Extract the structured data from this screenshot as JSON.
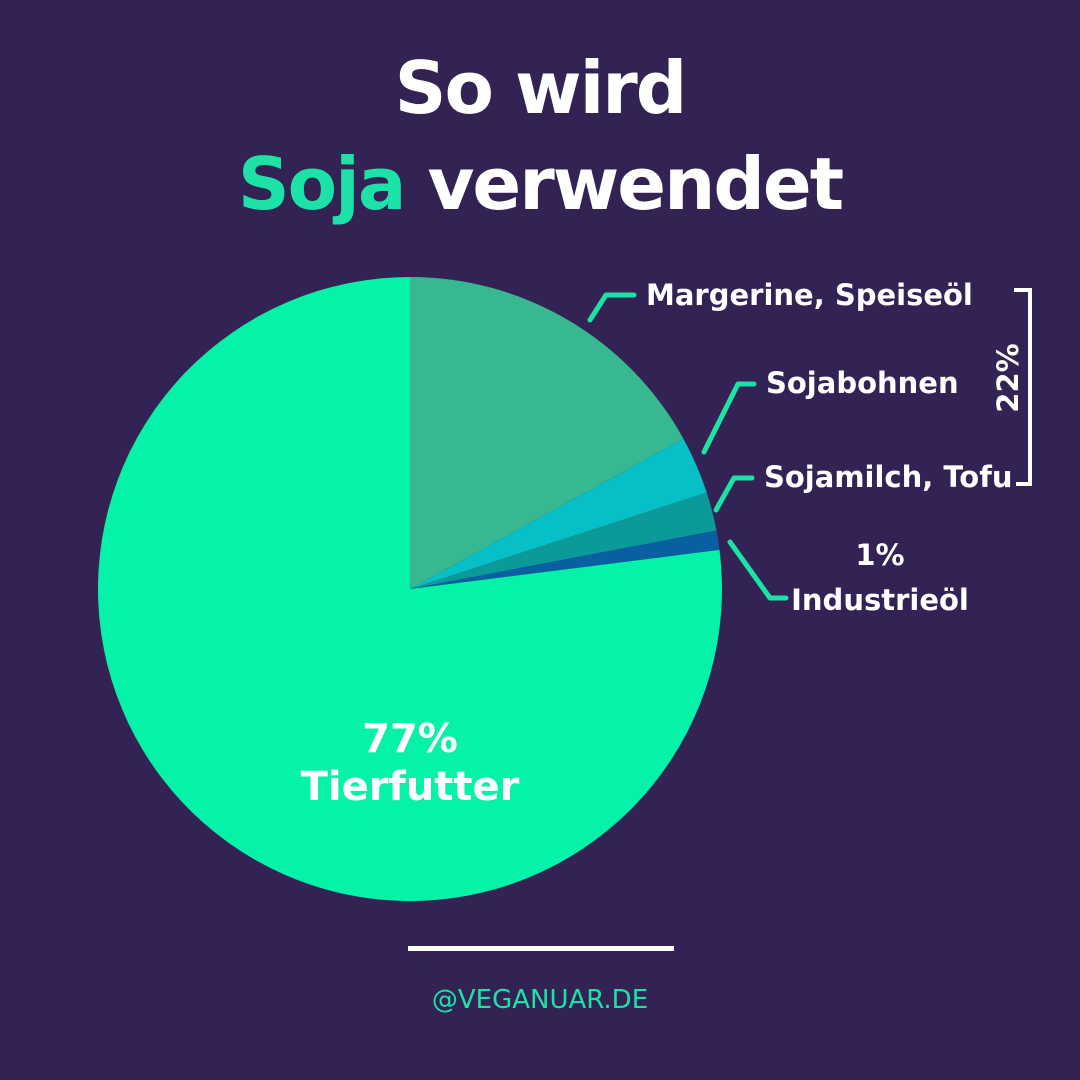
{
  "title": {
    "line1": "So wird",
    "line2_accent": "Soja",
    "line2_rest": "verwendet"
  },
  "footer": {
    "handle": "@VEGANUAR.DE"
  },
  "colors": {
    "background": "#322354",
    "accent": "#1de2a7",
    "text": "#ffffff"
  },
  "chart_data": {
    "type": "pie",
    "slices": [
      {
        "label": "Tierfutter",
        "value": 77,
        "value_label": "77%",
        "color": "#05f2a8"
      },
      {
        "label": "Margerine, Speiseöl",
        "value": 17,
        "color": "#38b890"
      },
      {
        "label": "Sojabohnen",
        "value": 3,
        "color": "#06bfc7"
      },
      {
        "label": "Sojamilch, Tofu",
        "value": 2,
        "color": "#0b9a9a"
      },
      {
        "label": "Industrieöl",
        "value": 1,
        "value_label": "1%",
        "color": "#0a5fa0"
      }
    ],
    "group_annotation": {
      "label": "22%",
      "members": [
        "Margerine, Speiseöl",
        "Sojabohnen",
        "Sojamilch, Tofu"
      ]
    }
  }
}
